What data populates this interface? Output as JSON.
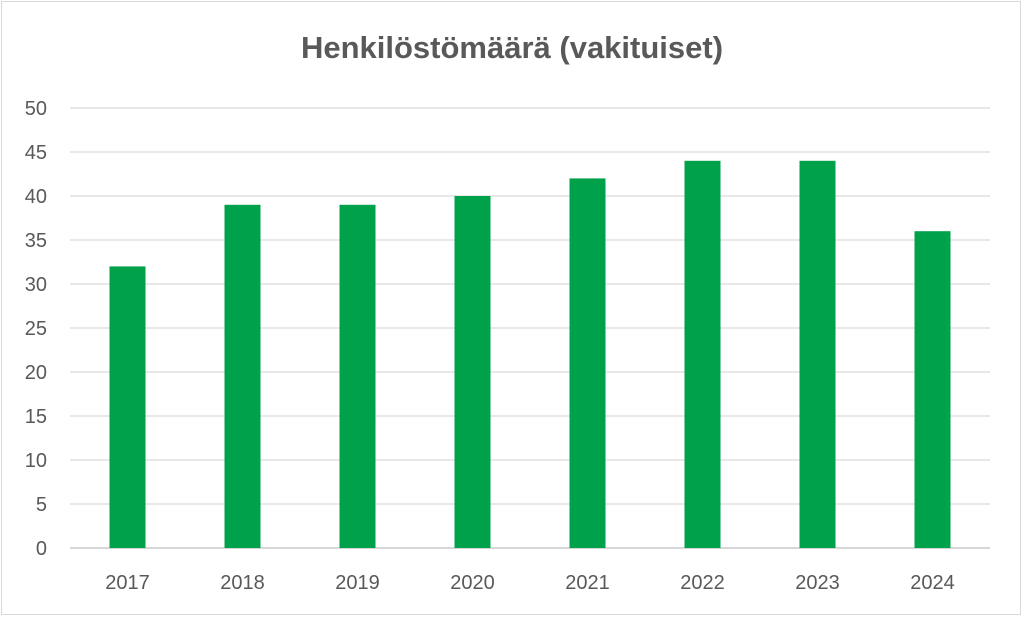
{
  "chart_data": {
    "type": "bar",
    "title": "Henkilöstömäärä (vakituiset)",
    "xlabel": "",
    "ylabel": "",
    "categories": [
      "2017",
      "2018",
      "2019",
      "2020",
      "2021",
      "2022",
      "2023",
      "2024"
    ],
    "values": [
      32,
      39,
      39,
      40,
      42,
      44,
      44,
      36
    ],
    "ylim": [
      0,
      50
    ],
    "yticks": [
      "0",
      "5",
      "10",
      "15",
      "20",
      "25",
      "30",
      "35",
      "40",
      "45",
      "50"
    ],
    "grid": true,
    "legend": "none",
    "colors": {
      "bar": "#00a14b",
      "grid": "#d9d9d9",
      "axis": "#bfbfbf",
      "text": "#595959"
    }
  }
}
